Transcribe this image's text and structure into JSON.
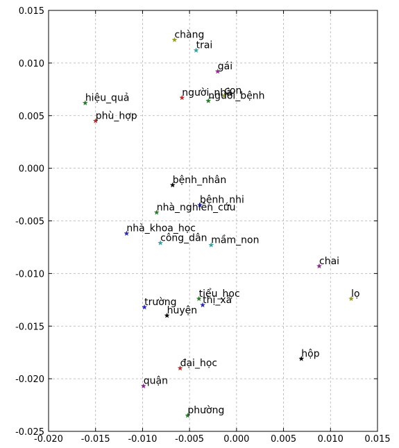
{
  "chart_data": {
    "type": "scatter",
    "title": "",
    "xlabel": "",
    "ylabel": "",
    "xlim": [
      -0.02,
      0.015
    ],
    "ylim": [
      -0.025,
      0.015
    ],
    "grid": true,
    "x_ticks": [
      -0.02,
      -0.015,
      -0.01,
      -0.005,
      0.0,
      0.005,
      0.01,
      0.015
    ],
    "x_tick_labels": [
      "-0.020",
      "-0.015",
      "-0.010",
      "-0.005",
      "0.000",
      "0.005",
      "0.010",
      "0.015"
    ],
    "y_ticks": [
      0.015,
      0.01,
      0.005,
      0.0,
      -0.005,
      -0.01,
      -0.015,
      -0.02,
      -0.025
    ],
    "y_tick_labels": [
      "0.015",
      "0.010",
      "0.005",
      "0.000",
      "-0.005",
      "-0.010",
      "-0.015",
      "-0.020",
      "-0.025"
    ],
    "points": [
      {
        "label": "chàng",
        "x": -0.0066,
        "y": 0.0122,
        "color": "#9a9a2a"
      },
      {
        "label": "trai",
        "x": -0.0043,
        "y": 0.0112,
        "color": "#3aa0a0"
      },
      {
        "label": "gái",
        "x": -0.002,
        "y": 0.0092,
        "color": "#8b2a8b"
      },
      {
        "label": "người_nhà",
        "x": -0.0058,
        "y": 0.0067,
        "color": "#b03030"
      },
      {
        "label": "con",
        "x": -0.0013,
        "y": 0.0069,
        "color": "#9a9a2a"
      },
      {
        "label": "người_bệnh",
        "x": -0.003,
        "y": 0.0064,
        "color": "#2a7a2a"
      },
      {
        "label": "hiệu_quả",
        "x": -0.0161,
        "y": 0.0062,
        "color": "#2a7a2a"
      },
      {
        "label": "phù_hợp",
        "x": -0.015,
        "y": 0.0045,
        "color": "#b03030"
      },
      {
        "label": "bệnh_nhân",
        "x": -0.0068,
        "y": -0.0016,
        "color": "#000000"
      },
      {
        "label": "bệnh_nhi",
        "x": -0.0039,
        "y": -0.0035,
        "color": "#2a2ab0"
      },
      {
        "label": "nhà_nghiên_cứu",
        "x": -0.0085,
        "y": -0.0042,
        "color": "#2a7a2a"
      },
      {
        "label": "nhà_khoa_học",
        "x": -0.0117,
        "y": -0.0062,
        "color": "#2a2ab0"
      },
      {
        "label": "công_dân",
        "x": -0.0081,
        "y": -0.0071,
        "color": "#3aa0a0"
      },
      {
        "label": "mầm_non",
        "x": -0.0027,
        "y": -0.0073,
        "color": "#3aa0a0"
      },
      {
        "label": "chai",
        "x": 0.0088,
        "y": -0.0093,
        "color": "#8b2a8b"
      },
      {
        "label": "lọ",
        "x": 0.0122,
        "y": -0.0124,
        "color": "#9a9a2a"
      },
      {
        "label": "tiểu_học",
        "x": -0.004,
        "y": -0.0124,
        "color": "#2a7a2a"
      },
      {
        "label": "thị_xã",
        "x": -0.0036,
        "y": -0.013,
        "color": "#2a2ab0"
      },
      {
        "label": "trường",
        "x": -0.0098,
        "y": -0.0132,
        "color": "#2a2ab0"
      },
      {
        "label": "huyện",
        "x": -0.0074,
        "y": -0.014,
        "color": "#000000"
      },
      {
        "label": "hộp",
        "x": 0.0069,
        "y": -0.0181,
        "color": "#000000"
      },
      {
        "label": "đại_học",
        "x": -0.006,
        "y": -0.019,
        "color": "#b03030"
      },
      {
        "label": "quận",
        "x": -0.0099,
        "y": -0.0207,
        "color": "#8b2a8b"
      },
      {
        "label": "phường",
        "x": -0.0052,
        "y": -0.0235,
        "color": "#2a7a2a"
      }
    ]
  }
}
